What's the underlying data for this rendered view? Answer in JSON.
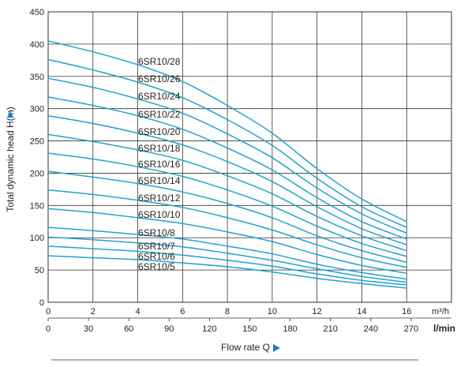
{
  "chart_data": {
    "type": "line",
    "ylabel": "Total dynamic head H(m)",
    "xlabel": "Flow rate  Q",
    "x_unit_primary": "m³/h",
    "x_unit_secondary": "l/min",
    "x_ticks_primary": [
      0,
      2,
      4,
      6,
      8,
      10,
      12,
      14,
      16
    ],
    "x_ticks_secondary": [
      0,
      30,
      60,
      90,
      120,
      150,
      180,
      210,
      240,
      270
    ],
    "y_ticks": [
      0,
      50,
      100,
      150,
      200,
      250,
      300,
      350,
      400,
      450
    ],
    "xlim": [
      0,
      18
    ],
    "ylim": [
      0,
      450
    ],
    "grid": true,
    "colors": {
      "curve": "#1fa2d2",
      "grid": "#333333",
      "arrow": "#1a7fd0"
    },
    "x": [
      0,
      2,
      4,
      6,
      8,
      10,
      12,
      14,
      16
    ],
    "series": [
      {
        "name": "6SR10/28",
        "values": [
          405,
          388,
          368,
          342,
          305,
          262,
          207,
          160,
          125
        ]
      },
      {
        "name": "6SR10/26",
        "values": [
          376,
          360,
          341,
          317,
          283,
          243,
          192,
          148,
          116
        ]
      },
      {
        "name": "6SR10/24",
        "values": [
          347,
          333,
          315,
          293,
          261,
          224,
          177,
          137,
          107
        ]
      },
      {
        "name": "6SR10/22",
        "values": [
          318,
          305,
          289,
          268,
          239,
          205,
          162,
          125,
          98
        ]
      },
      {
        "name": "6SR10/20",
        "values": [
          289,
          277,
          262,
          244,
          218,
          187,
          148,
          114,
          89
        ]
      },
      {
        "name": "6SR10/18",
        "values": [
          260,
          249,
          236,
          220,
          196,
          168,
          133,
          103,
          80
        ]
      },
      {
        "name": "6SR10/16",
        "values": [
          231,
          222,
          210,
          195,
          174,
          149,
          118,
          91,
          71
        ]
      },
      {
        "name": "6SR10/14",
        "values": [
          203,
          194,
          184,
          171,
          153,
          131,
          103,
          80,
          62
        ]
      },
      {
        "name": "6SR10/12",
        "values": [
          174,
          167,
          158,
          147,
          131,
          112,
          89,
          69,
          54
        ]
      },
      {
        "name": "6SR10/10",
        "values": [
          145,
          139,
          131,
          122,
          109,
          94,
          74,
          57,
          45
        ]
      },
      {
        "name": "6SR10/8",
        "values": [
          116,
          111,
          105,
          98,
          87,
          75,
          59,
          46,
          36
        ]
      },
      {
        "name": "6SR10/7",
        "values": [
          101,
          97,
          92,
          86,
          76,
          65,
          52,
          40,
          31
        ]
      },
      {
        "name": "6SR10/6",
        "values": [
          87,
          83,
          79,
          73,
          65,
          56,
          44,
          34,
          27
        ]
      },
      {
        "name": "6SR10/5",
        "values": [
          72,
          69,
          66,
          61,
          55,
          47,
          37,
          29,
          22
        ]
      }
    ]
  }
}
